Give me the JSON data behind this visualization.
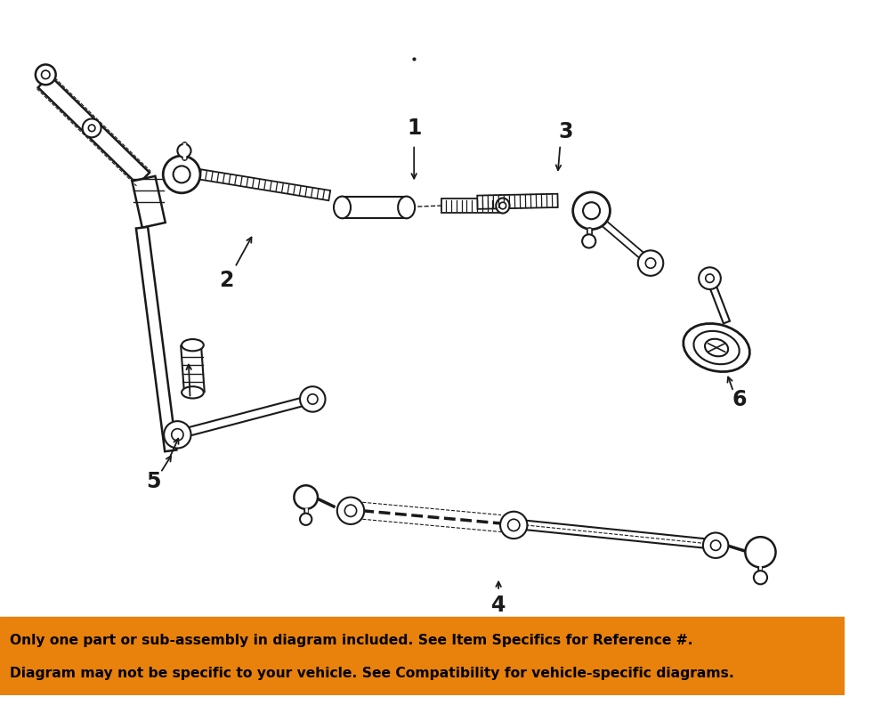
{
  "bg_color": "#ffffff",
  "orange_color": "#E8820C",
  "line_color": "#1a1a1a",
  "disclaimer_line1": "Only one part or sub-assembly in diagram included. See Item Specifics for Reference #.",
  "disclaimer_line2": "Diagram may not be specific to your vehicle. See Compatibility for vehicle-specific diagrams.",
  "orange_bar_height": 92
}
